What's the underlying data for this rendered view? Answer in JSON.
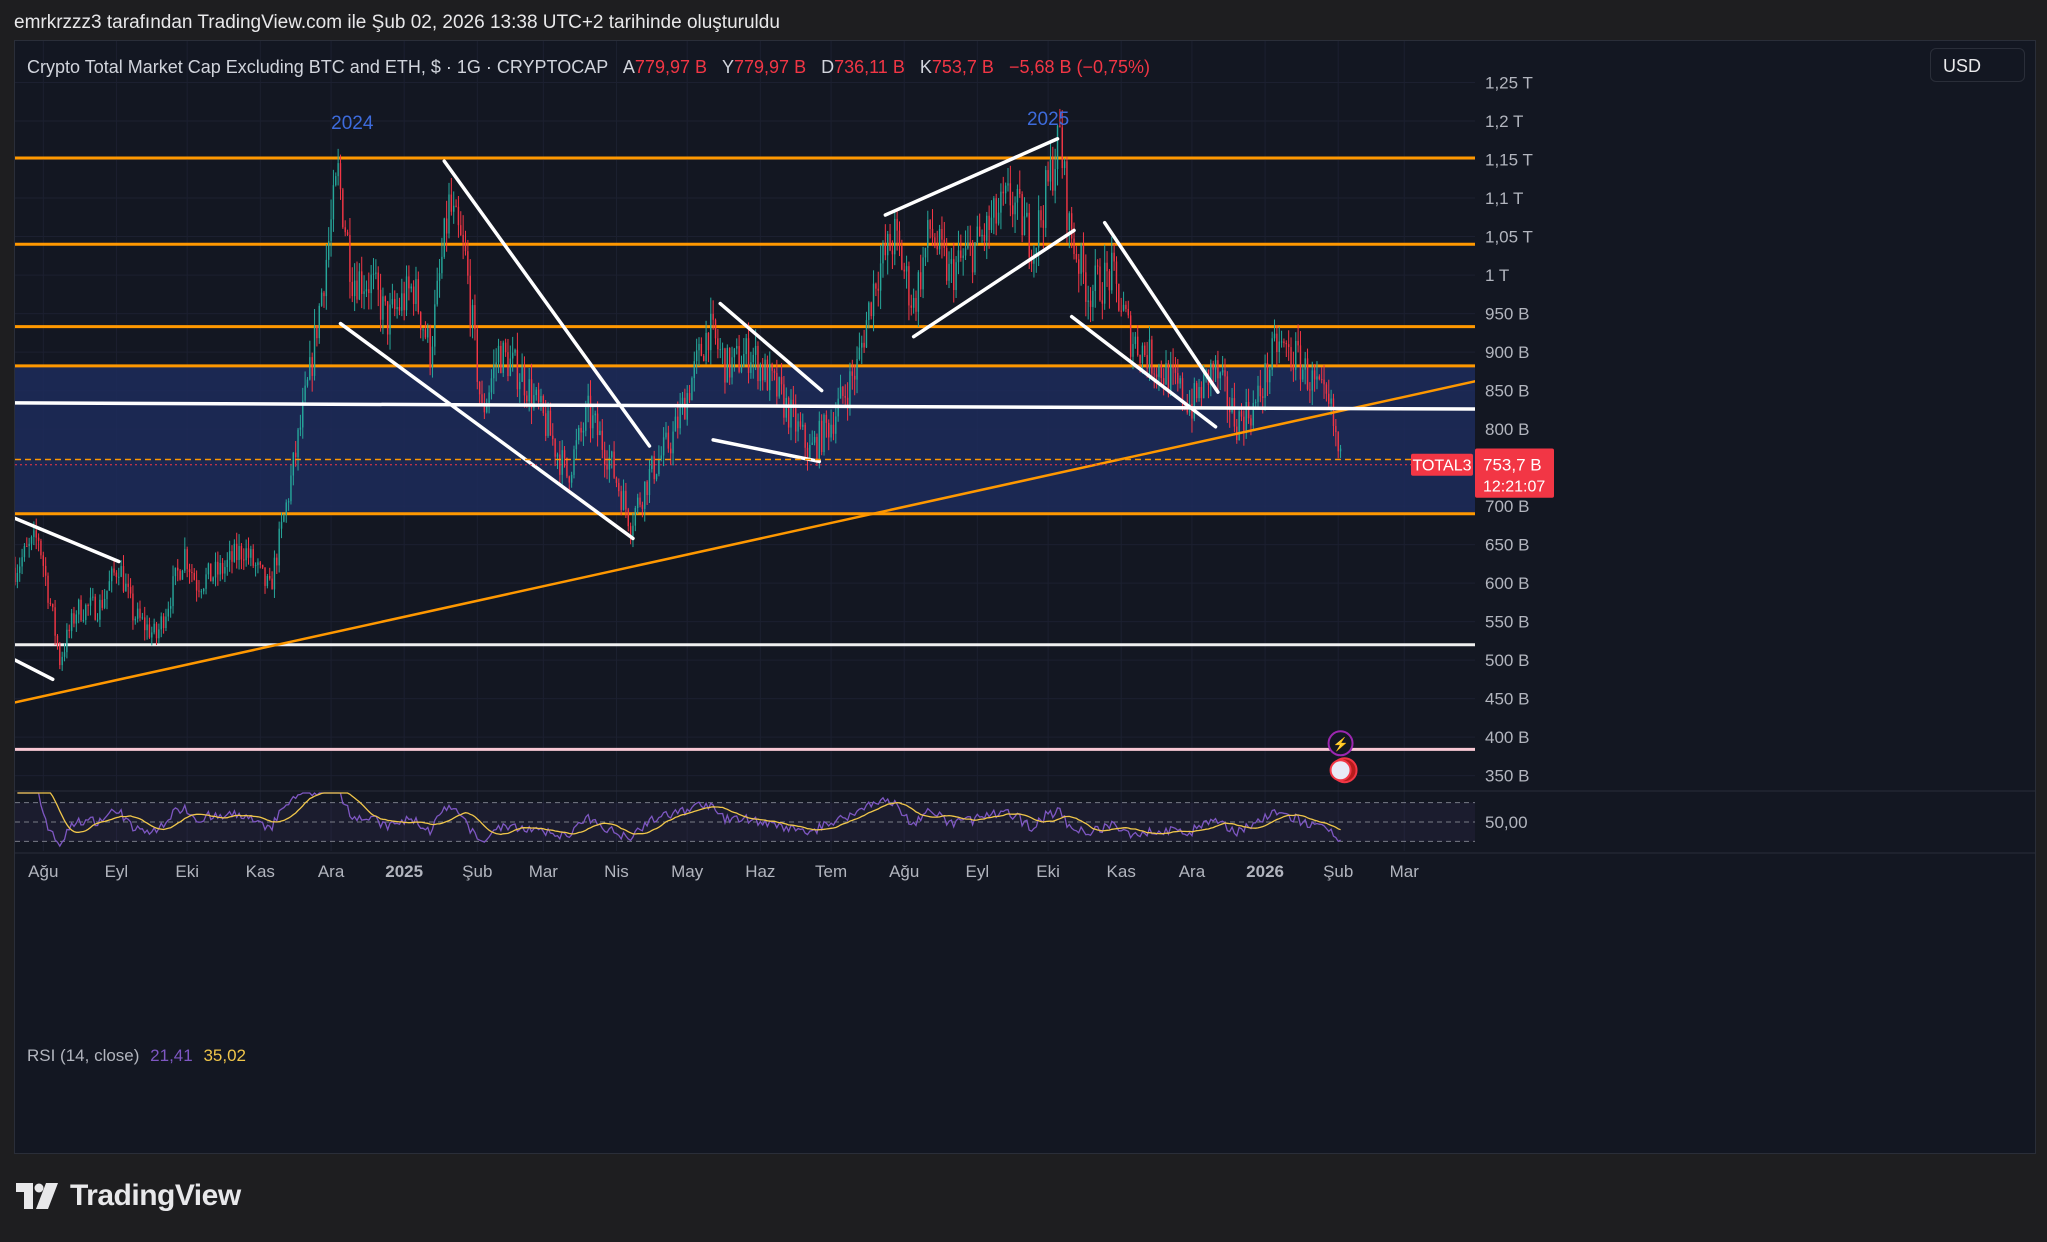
{
  "header": {
    "attribution": "emrkrzzz3 tarafından TradingView.com ile Şub 02, 2026 13:38 UTC+2 tarihinde oluşturuldu"
  },
  "legend": {
    "title": "Crypto Total Market Cap Excluding BTC and ETH, $ · 1G · CRYPTOCAP",
    "open_label": "A",
    "open_value": "779,97 B",
    "high_label": "Y",
    "high_value": "779,97 B",
    "low_label": "D",
    "low_value": "736,11 B",
    "close_label": "K",
    "close_value": "753,7 B",
    "change": "−5,68 B (−0,75%)"
  },
  "currency_button": "USD",
  "brand": "TradingView",
  "rsi": {
    "label": "RSI (14, close)",
    "value1": "21,41",
    "value2": "35,02",
    "axis_label": "50,00"
  },
  "colors": {
    "background": "#131722",
    "up": "#26a69a",
    "down": "#f23645",
    "orange_line": "#ff9800",
    "zone": "#1d2c5a",
    "rsi_line": "#7e57c2",
    "rsi_ma": "#f0c64a"
  },
  "chart_data": {
    "type": "candlestick",
    "symbol": "TOTAL3",
    "timeframe": "1G",
    "y_unit": "B",
    "y_ticks": [
      {
        "v": 1250,
        "label": "1,25 T"
      },
      {
        "v": 1200,
        "label": "1,2 T"
      },
      {
        "v": 1150,
        "label": "1,15 T"
      },
      {
        "v": 1100,
        "label": "1,1 T"
      },
      {
        "v": 1050,
        "label": "1,05 T"
      },
      {
        "v": 1000,
        "label": "1 T"
      },
      {
        "v": 950,
        "label": "950 B"
      },
      {
        "v": 900,
        "label": "900 B"
      },
      {
        "v": 850,
        "label": "850 B"
      },
      {
        "v": 800,
        "label": "800 B"
      },
      {
        "v": 700,
        "label": "700 B"
      },
      {
        "v": 650,
        "label": "650 B"
      },
      {
        "v": 600,
        "label": "600 B"
      },
      {
        "v": 550,
        "label": "550 B"
      },
      {
        "v": 500,
        "label": "500 B"
      },
      {
        "v": 450,
        "label": "450 B"
      },
      {
        "v": 400,
        "label": "400 B"
      },
      {
        "v": 350,
        "label": "350 B"
      }
    ],
    "ylim": [
      330,
      1265
    ],
    "x_ticks": [
      {
        "date": "2024-08-01",
        "label": "Ağu",
        "bold": false
      },
      {
        "date": "2024-09-01",
        "label": "Eyl",
        "bold": false
      },
      {
        "date": "2024-10-01",
        "label": "Eki",
        "bold": false
      },
      {
        "date": "2024-11-01",
        "label": "Kas",
        "bold": false
      },
      {
        "date": "2024-12-01",
        "label": "Ara",
        "bold": false
      },
      {
        "date": "2025-01-01",
        "label": "2025",
        "bold": true
      },
      {
        "date": "2025-02-01",
        "label": "Şub",
        "bold": false
      },
      {
        "date": "2025-03-01",
        "label": "Mar",
        "bold": false
      },
      {
        "date": "2025-04-01",
        "label": "Nis",
        "bold": false
      },
      {
        "date": "2025-05-01",
        "label": "May",
        "bold": false
      },
      {
        "date": "2025-06-01",
        "label": "Haz",
        "bold": false
      },
      {
        "date": "2025-07-01",
        "label": "Tem",
        "bold": false
      },
      {
        "date": "2025-08-01",
        "label": "Ağu",
        "bold": false
      },
      {
        "date": "2025-09-01",
        "label": "Eyl",
        "bold": false
      },
      {
        "date": "2025-10-01",
        "label": "Eki",
        "bold": false
      },
      {
        "date": "2025-11-01",
        "label": "Kas",
        "bold": false
      },
      {
        "date": "2025-12-01",
        "label": "Ara",
        "bold": false
      },
      {
        "date": "2026-01-01",
        "label": "2026",
        "bold": true
      },
      {
        "date": "2026-02-01",
        "label": "Şub",
        "bold": false
      },
      {
        "date": "2026-03-01",
        "label": "Mar",
        "bold": false
      }
    ],
    "xlim": [
      "2024-07-20",
      "2026-03-31"
    ],
    "price_path": [
      [
        "2024-07-20",
        620
      ],
      [
        "2024-07-30",
        660
      ],
      [
        "2024-08-05",
        555
      ],
      [
        "2024-08-08",
        500
      ],
      [
        "2024-08-15",
        565
      ],
      [
        "2024-08-25",
        570
      ],
      [
        "2024-09-02",
        625
      ],
      [
        "2024-09-08",
        560
      ],
      [
        "2024-09-18",
        530
      ],
      [
        "2024-09-30",
        640
      ],
      [
        "2024-10-05",
        600
      ],
      [
        "2024-10-15",
        615
      ],
      [
        "2024-10-25",
        645
      ],
      [
        "2024-11-05",
        590
      ],
      [
        "2024-11-12",
        700
      ],
      [
        "2024-11-22",
        870
      ],
      [
        "2024-12-04",
        1130
      ],
      [
        "2024-12-10",
        1000
      ],
      [
        "2024-12-18",
        990
      ],
      [
        "2024-12-25",
        940
      ],
      [
        "2025-01-05",
        985
      ],
      [
        "2025-01-12",
        900
      ],
      [
        "2025-01-20",
        1090
      ],
      [
        "2025-01-27",
        1020
      ],
      [
        "2025-02-03",
        820
      ],
      [
        "2025-02-10",
        900
      ],
      [
        "2025-02-20",
        870
      ],
      [
        "2025-03-03",
        800
      ],
      [
        "2025-03-11",
        740
      ],
      [
        "2025-03-20",
        820
      ],
      [
        "2025-03-28",
        770
      ],
      [
        "2025-04-07",
        680
      ],
      [
        "2025-04-15",
        740
      ],
      [
        "2025-04-25",
        790
      ],
      [
        "2025-05-10",
        930
      ],
      [
        "2025-05-18",
        880
      ],
      [
        "2025-05-28",
        900
      ],
      [
        "2025-06-10",
        840
      ],
      [
        "2025-06-22",
        770
      ],
      [
        "2025-07-01",
        810
      ],
      [
        "2025-07-12",
        880
      ],
      [
        "2025-07-20",
        1000
      ],
      [
        "2025-07-28",
        1050
      ],
      [
        "2025-08-05",
        960
      ],
      [
        "2025-08-12",
        1060
      ],
      [
        "2025-08-20",
        1000
      ],
      [
        "2025-09-01",
        1040
      ],
      [
        "2025-09-15",
        1100
      ],
      [
        "2025-09-25",
        1040
      ],
      [
        "2025-10-06",
        1180
      ],
      [
        "2025-10-10",
        1060
      ],
      [
        "2025-10-18",
        980
      ],
      [
        "2025-10-28",
        1000
      ],
      [
        "2025-11-05",
        920
      ],
      [
        "2025-11-20",
        870
      ],
      [
        "2025-12-01",
        830
      ],
      [
        "2025-12-10",
        880
      ],
      [
        "2025-12-20",
        810
      ],
      [
        "2025-12-28",
        830
      ],
      [
        "2026-01-06",
        910
      ],
      [
        "2026-01-15",
        890
      ],
      [
        "2026-01-25",
        840
      ],
      [
        "2026-01-29",
        820
      ],
      [
        "2026-02-02",
        754
      ]
    ],
    "horizontal_levels": [
      {
        "v": 1152,
        "color": "orange"
      },
      {
        "v": 1040,
        "color": "orange"
      },
      {
        "v": 933,
        "color": "orange"
      },
      {
        "v": 882,
        "color": "orange"
      },
      {
        "v": 690,
        "color": "orange"
      },
      {
        "v": 520,
        "color": "white"
      },
      {
        "v": 384,
        "color": "pink"
      }
    ],
    "zone": {
      "top": 882,
      "bottom": 690
    },
    "trendlines": [
      {
        "from": [
          "2024-07-20",
          445
        ],
        "to": [
          "2026-03-31",
          862
        ],
        "color": "orange"
      },
      {
        "from": [
          "2024-07-20",
          834
        ],
        "to": [
          "2026-03-31",
          826
        ],
        "color": "white"
      },
      {
        "from": [
          "2024-07-20",
          684
        ],
        "to": [
          "2024-09-02",
          628
        ],
        "color": "white"
      },
      {
        "from": [
          "2024-07-20",
          500
        ],
        "to": [
          "2024-08-05",
          475
        ],
        "color": "white"
      },
      {
        "from": [
          "2024-12-05",
          937
        ],
        "to": [
          "2025-04-08",
          658
        ],
        "color": "white"
      },
      {
        "from": [
          "2025-01-18",
          1148
        ],
        "to": [
          "2025-04-15",
          778
        ],
        "color": "white"
      },
      {
        "from": [
          "2025-05-15",
          963
        ],
        "to": [
          "2025-06-27",
          850
        ],
        "color": "white"
      },
      {
        "from": [
          "2025-05-12",
          786
        ],
        "to": [
          "2025-06-26",
          758
        ],
        "color": "white"
      },
      {
        "from": [
          "2025-07-24",
          1078
        ],
        "to": [
          "2025-10-05",
          1177
        ],
        "color": "white"
      },
      {
        "from": [
          "2025-08-05",
          920
        ],
        "to": [
          "2025-10-12",
          1058
        ],
        "color": "white"
      },
      {
        "from": [
          "2025-10-25",
          1068
        ],
        "to": [
          "2025-12-12",
          848
        ],
        "color": "white"
      },
      {
        "from": [
          "2025-10-11",
          946
        ],
        "to": [
          "2025-12-11",
          803
        ],
        "color": "white"
      }
    ],
    "annotations": [
      {
        "text": "2024",
        "date": "2024-12-10",
        "v": 1190
      },
      {
        "text": "2025",
        "date": "2025-10-01",
        "v": 1195
      }
    ],
    "price_labels": {
      "dashed_level": "760,44 B",
      "dashed_value": 760.44,
      "last_price": "753,7 B",
      "last_value": 753.7,
      "countdown": "12:21:07",
      "symbol_tag": "TOTAL3"
    },
    "rsi": {
      "upper": 70,
      "lower": 30,
      "mid_label": "50,00",
      "last_rsi": 21.41,
      "last_ma": 35.02
    }
  }
}
